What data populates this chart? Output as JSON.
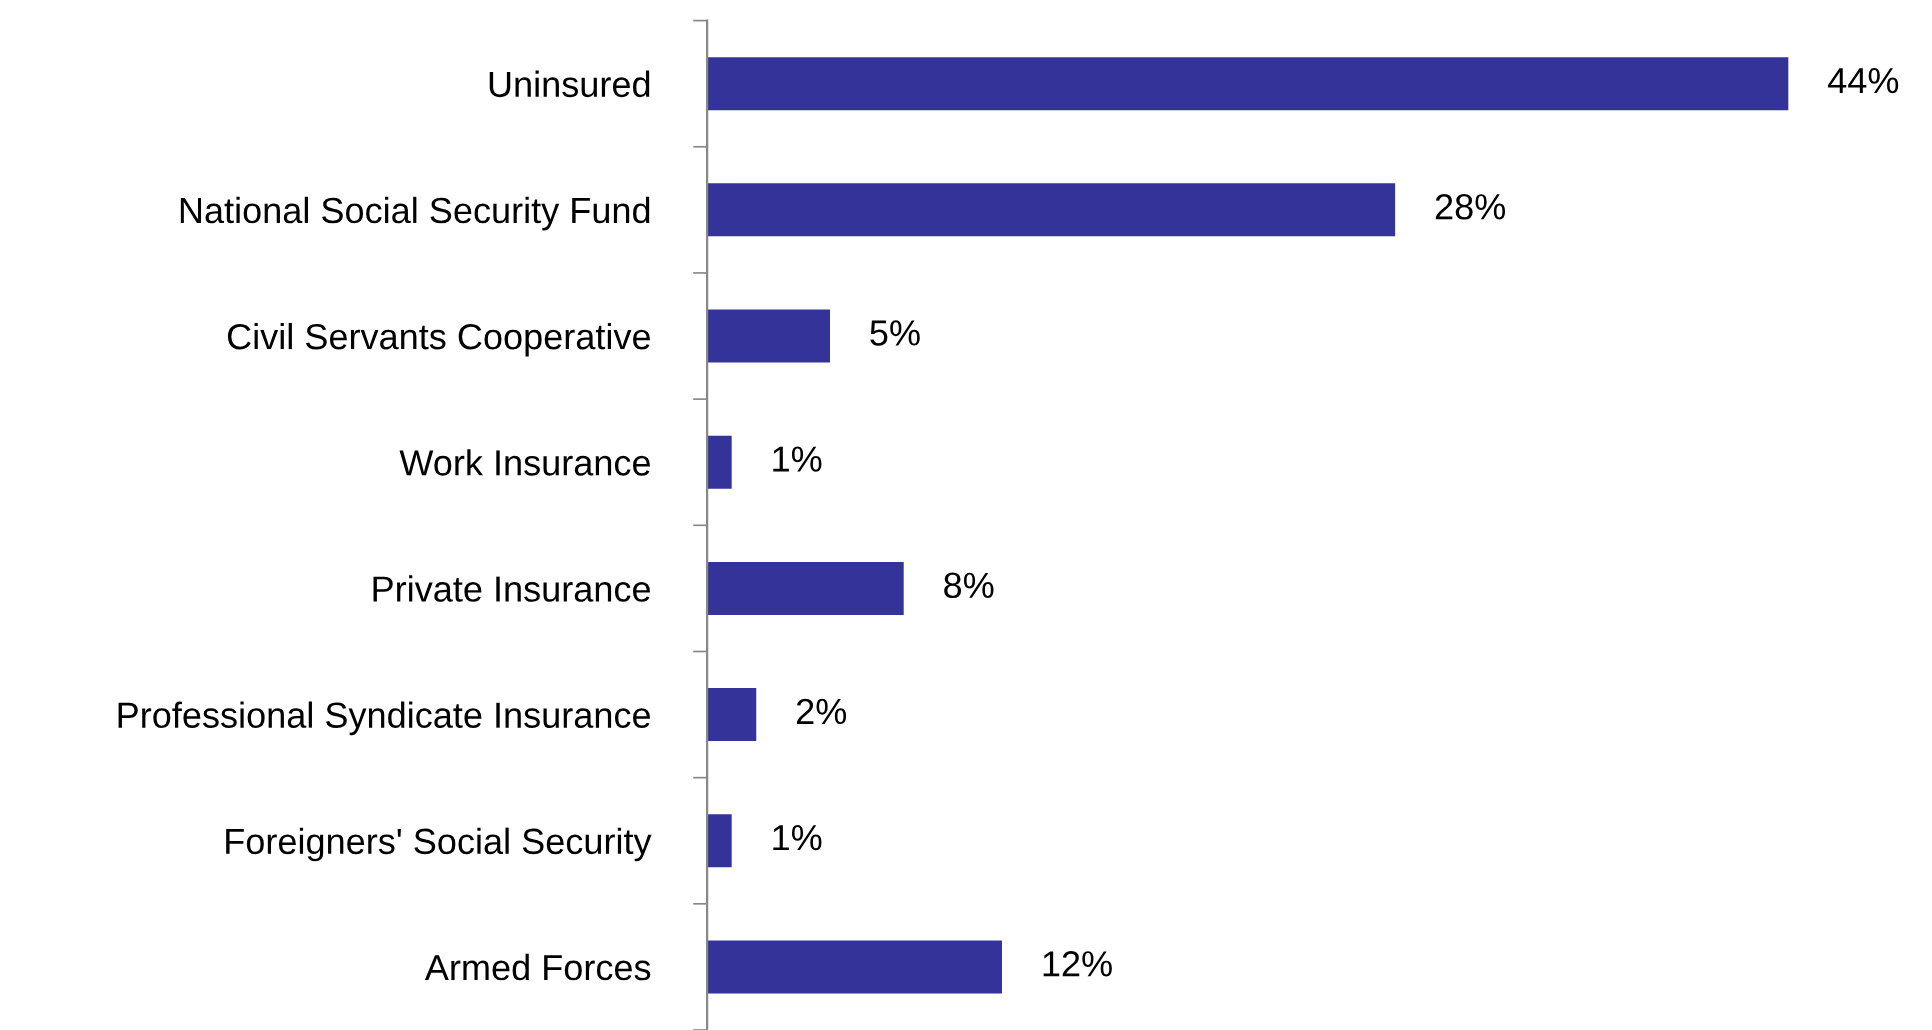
{
  "chart_data": {
    "type": "bar",
    "orientation": "horizontal",
    "categories": [
      "Uninsured",
      "National Social Security Fund",
      "Civil Servants Cooperative",
      "Work Insurance",
      "Private Insurance",
      "Professional Syndicate Insurance",
      "Foreigners' Social Security",
      "Armed Forces"
    ],
    "values": [
      44,
      28,
      5,
      1,
      8,
      2,
      1,
      12
    ],
    "value_labels": [
      "44%",
      "28%",
      "5%",
      "1%",
      "8%",
      "2%",
      "1%",
      "12%"
    ],
    "color": "#333399",
    "grid": false,
    "legend": false
  }
}
